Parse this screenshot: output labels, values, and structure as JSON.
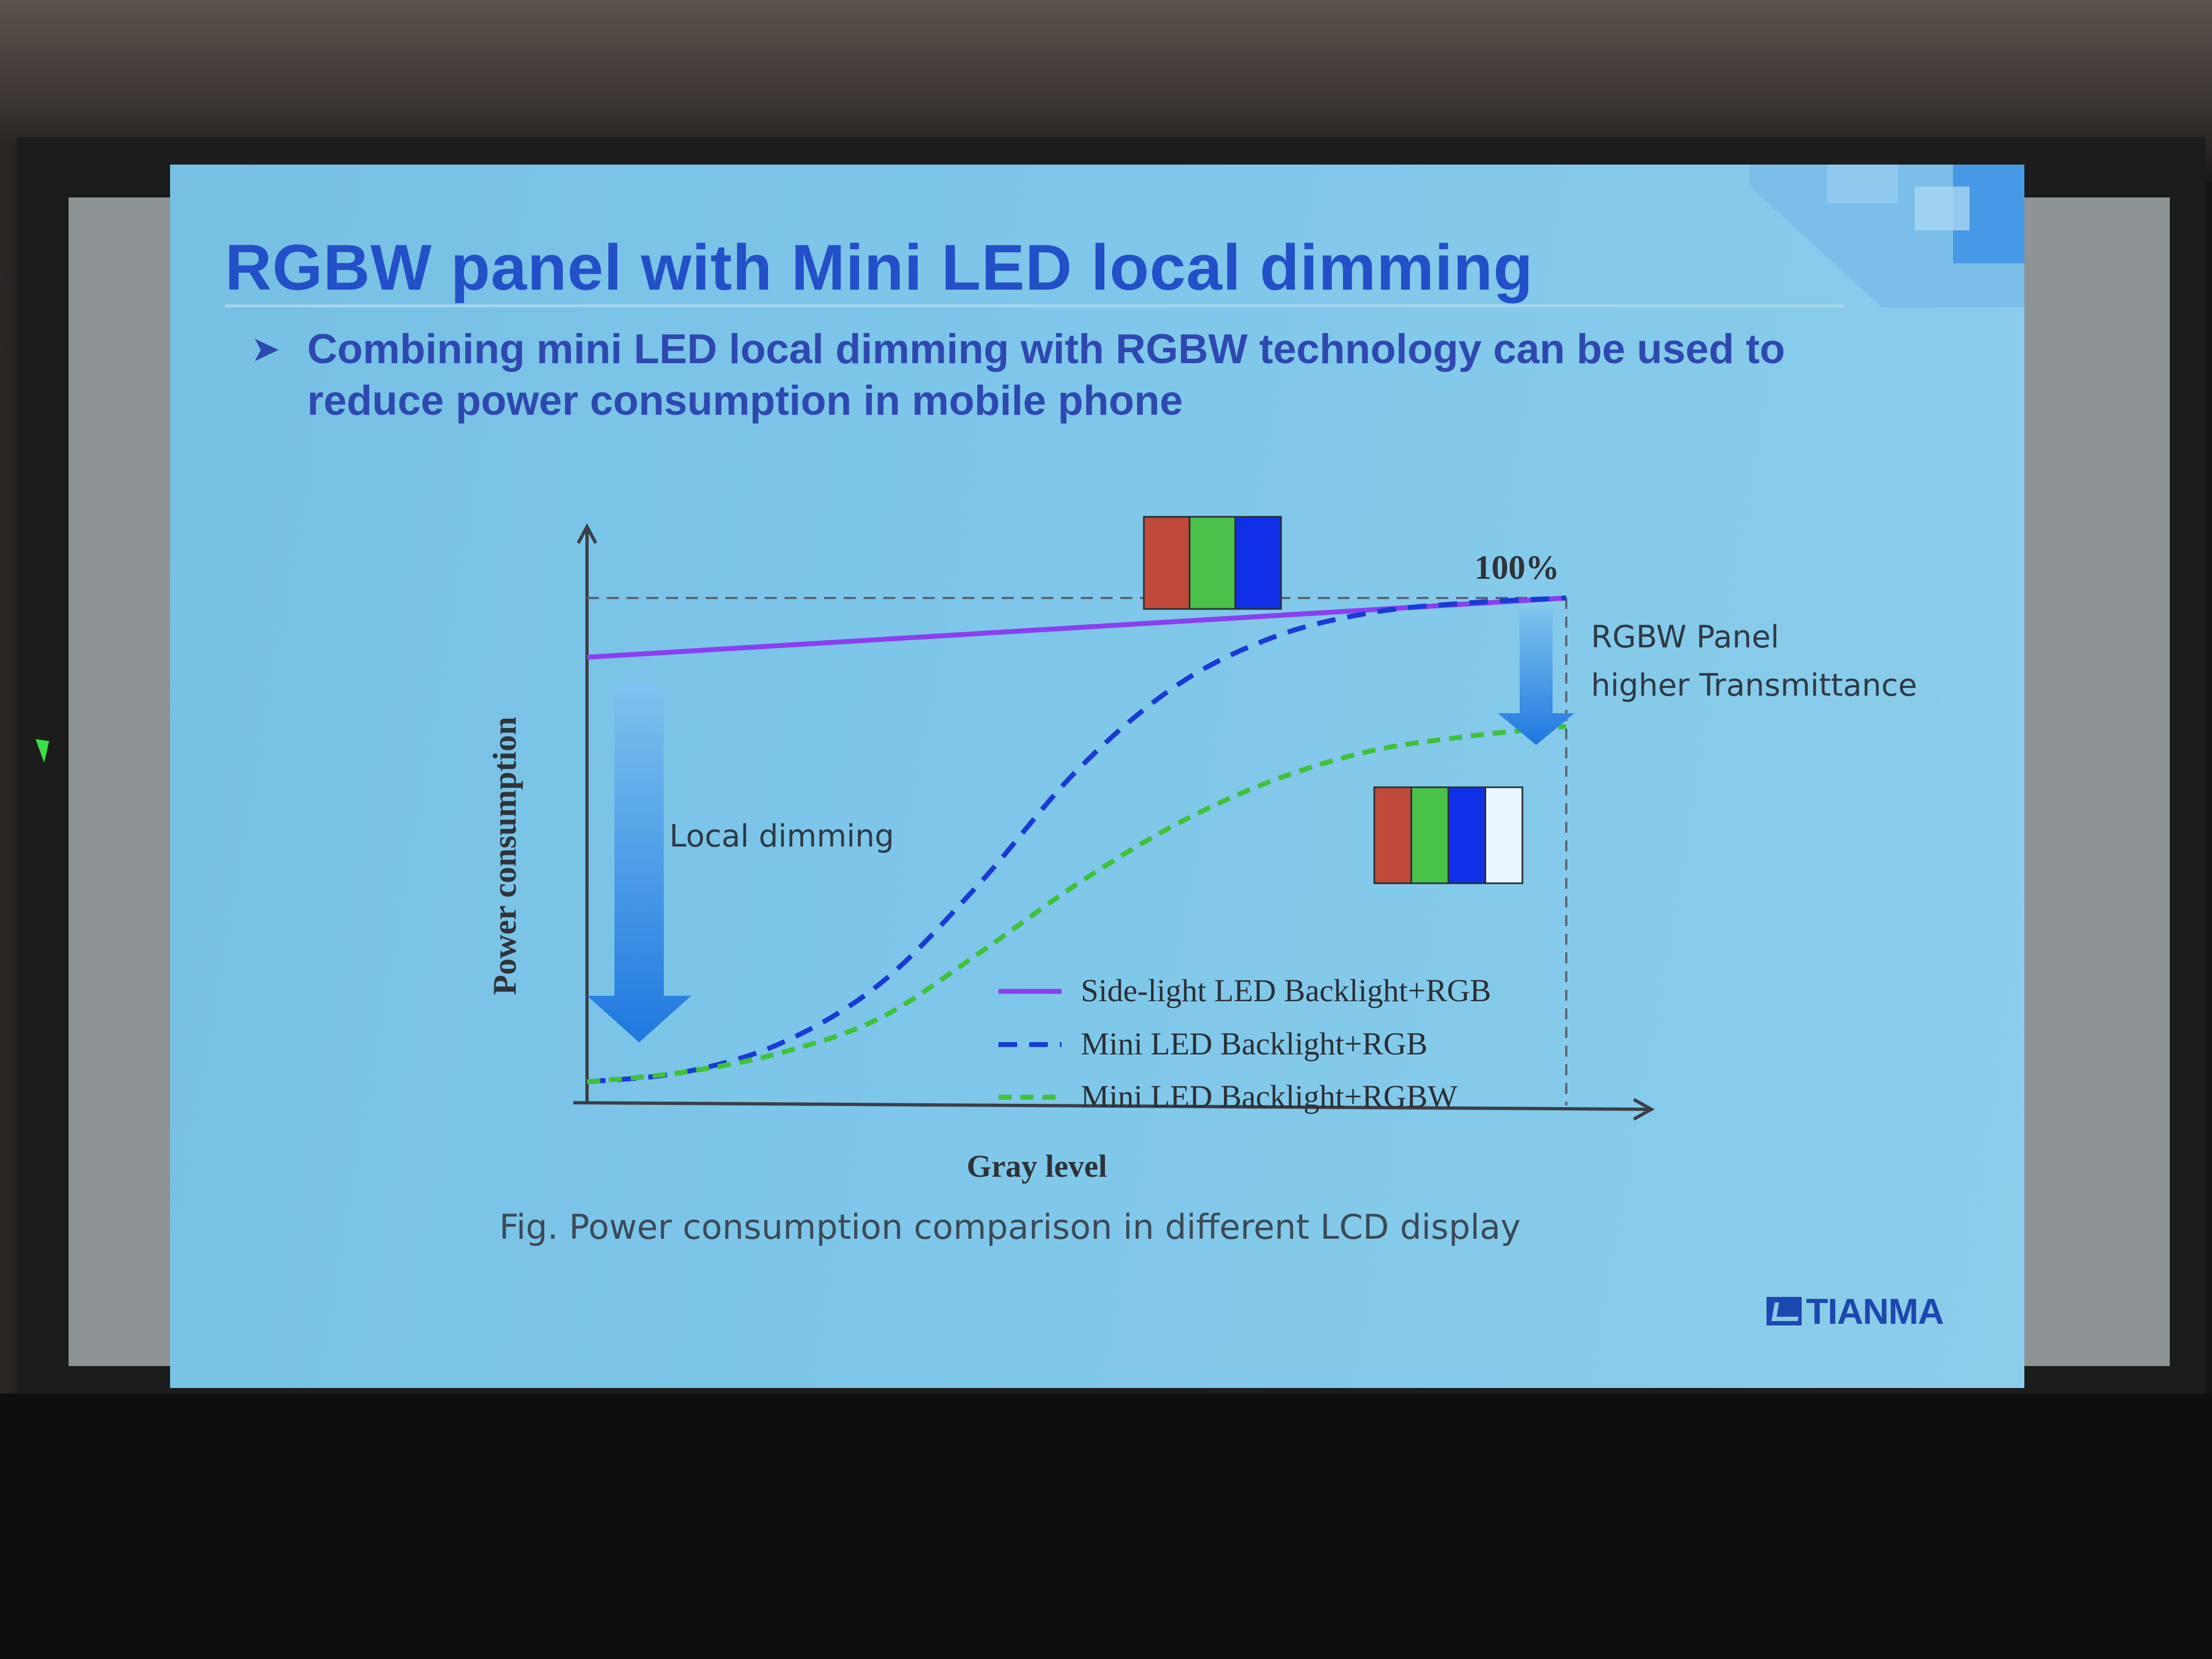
{
  "slide": {
    "title": "RGBW panel with Mini LED local dimming",
    "bullet_line1": "Combining mini LED local dimming with RGBW technology can be used to",
    "bullet_line2": "reduce power consumption in mobile phone",
    "caption": "Fig. Power consumption comparison in different LCD display",
    "logo": "TIANMA"
  },
  "colors": {
    "purple": "#8a3ff0",
    "blue_dash": "#1a3ad6",
    "green_dash": "#3fc23a",
    "title": "#2350c8",
    "arrow_blue": "#2d84e4"
  },
  "chart_data": {
    "type": "line",
    "title": "",
    "xlabel": "Gray level",
    "ylabel": "Power consumption",
    "xlim": [
      0,
      100
    ],
    "ylim": [
      0,
      120
    ],
    "series": [
      {
        "name": "Side-light  LED Backlight+RGB",
        "style": "solid",
        "color": "#8a3ff0",
        "x": [
          0,
          100
        ],
        "y": [
          88,
          100
        ]
      },
      {
        "name": "Mini LED Backlight+RGB",
        "style": "dashed",
        "color": "#1a3ad6",
        "x": [
          0,
          10,
          20,
          30,
          40,
          50,
          60,
          70,
          80,
          90,
          100
        ],
        "y": [
          2,
          4,
          10,
          22,
          42,
          65,
          82,
          92,
          97,
          99,
          100
        ]
      },
      {
        "name": "Mini LED Backlight+RGBW",
        "style": "dashed",
        "color": "#3fc23a",
        "x": [
          0,
          10,
          20,
          30,
          40,
          50,
          60,
          70,
          80,
          90,
          100
        ],
        "y": [
          2,
          4,
          8,
          15,
          28,
          42,
          54,
          63,
          69,
          72,
          74
        ]
      }
    ],
    "annotations": {
      "reference": "100%",
      "local_dimming": "Local dimming",
      "rgbw_line1": "RGBW Panel",
      "rgbw_line2": "higher Transmittance"
    },
    "legend_position": "bottom-right",
    "grid": false
  }
}
